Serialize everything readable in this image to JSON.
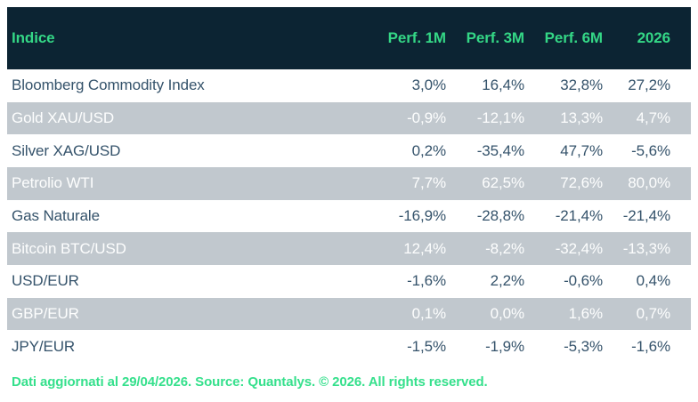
{
  "colors": {
    "header_bg": "#0c2433",
    "header_green": "#34d786",
    "row_text": "#35536b",
    "stripe_bg": "#c1c8ce",
    "stripe_text": "#fdfefe",
    "footer_green": "#35e08c",
    "page_bg": "#ffffff"
  },
  "table": {
    "columns": [
      {
        "label": "Indice"
      },
      {
        "label": "Perf. 1M"
      },
      {
        "label": "Perf. 3M"
      },
      {
        "label": "Perf. 6M"
      },
      {
        "label": "2026"
      }
    ],
    "rows": [
      {
        "label": "Bloomberg Commodity Index",
        "values": [
          "3,0%",
          "16,4%",
          "32,8%",
          "27,2%"
        ]
      },
      {
        "label": "Gold XAU/USD",
        "values": [
          "-0,9%",
          "-12,1%",
          "13,3%",
          "4,7%"
        ]
      },
      {
        "label": "Silver XAG/USD",
        "values": [
          "0,2%",
          "-35,4%",
          "47,7%",
          "-5,6%"
        ]
      },
      {
        "label": "Petrolio WTI",
        "values": [
          "7,7%",
          "62,5%",
          "72,6%",
          "80,0%"
        ]
      },
      {
        "label": "Gas Naturale",
        "values": [
          "-16,9%",
          "-28,8%",
          "-21,4%",
          "-21,4%"
        ]
      },
      {
        "label": "Bitcoin BTC/USD",
        "values": [
          "12,4%",
          "-8,2%",
          "-32,4%",
          "-13,3%"
        ]
      },
      {
        "label": "USD/EUR",
        "values": [
          "-1,6%",
          "2,2%",
          "-0,6%",
          "0,4%"
        ]
      },
      {
        "label": "GBP/EUR",
        "values": [
          "0,1%",
          "0,0%",
          "1,6%",
          "0,7%"
        ]
      },
      {
        "label": "JPY/EUR",
        "values": [
          "-1,5%",
          "-1,9%",
          "-5,3%",
          "-1,6%"
        ]
      }
    ]
  },
  "footer": {
    "text": "Dati aggiornati al 29/04/2026. Source: Quantalys. © 2026. All rights reserved."
  }
}
